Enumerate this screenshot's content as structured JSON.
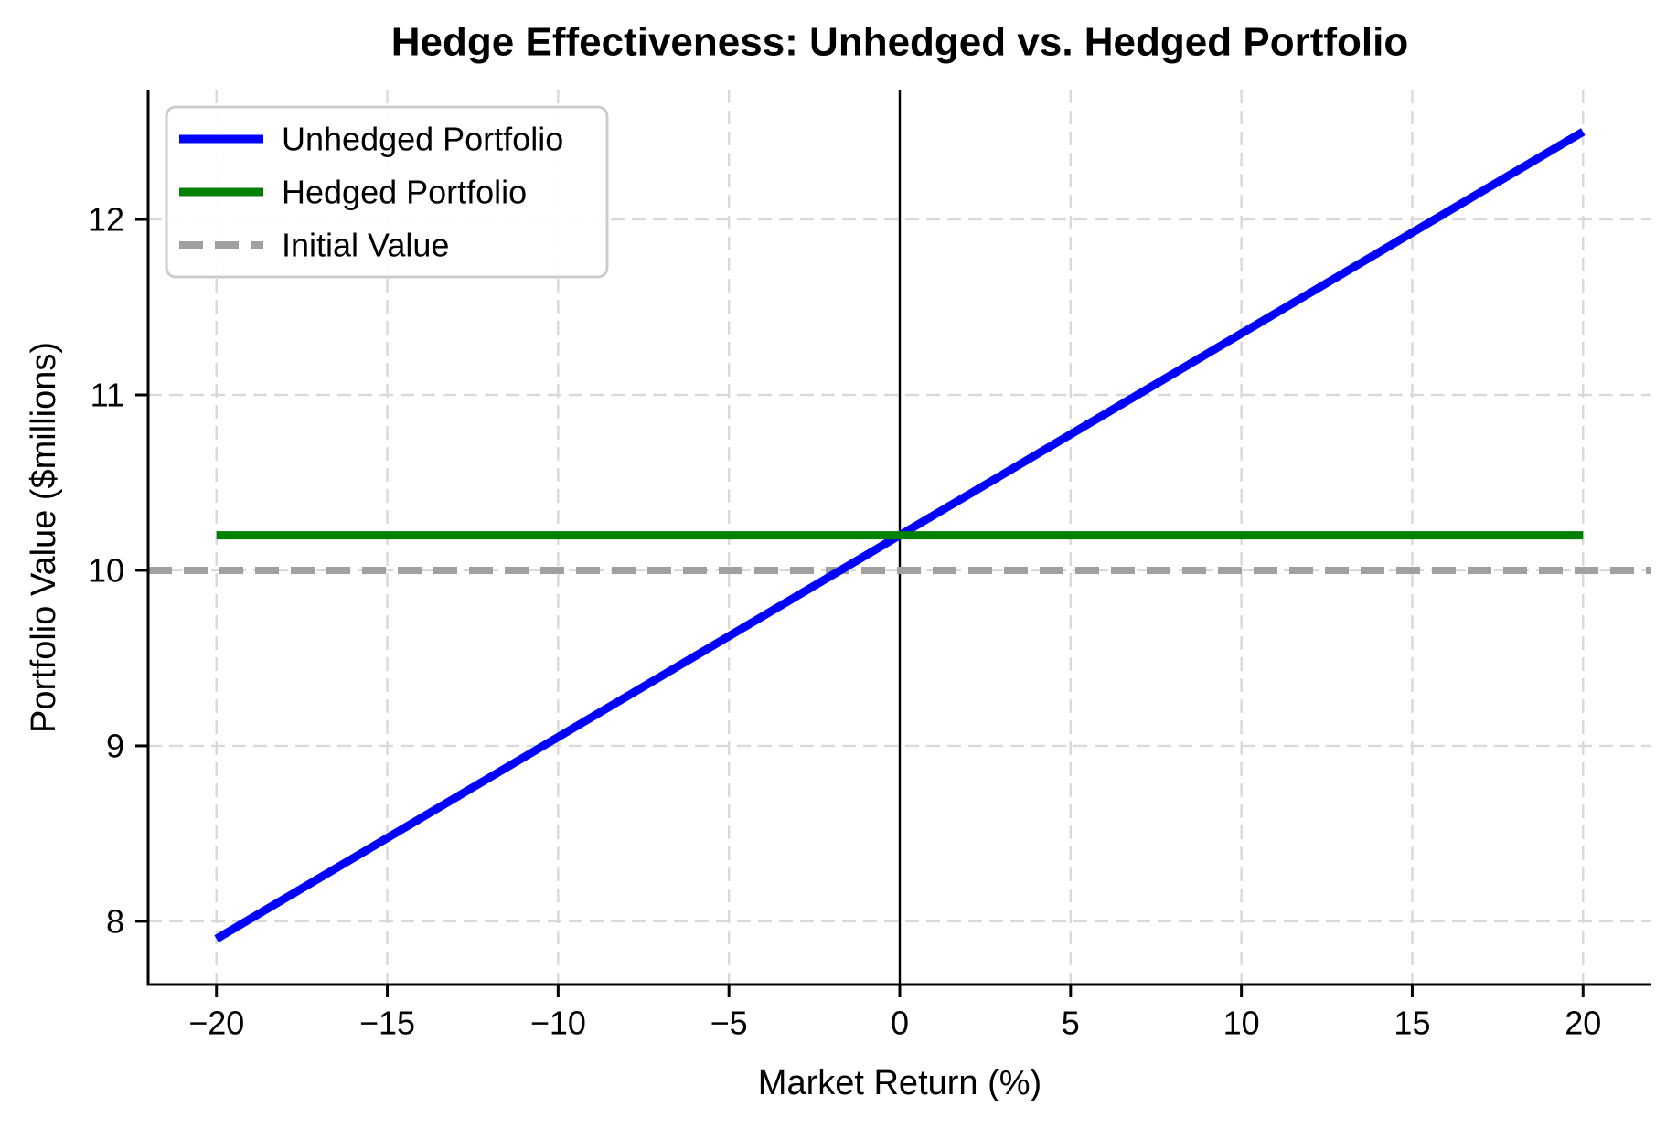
{
  "title": "Hedge Effectiveness: Unhedged vs. Hedged Portfolio",
  "chart_data": {
    "type": "line",
    "title": "Hedge Effectiveness: Unhedged vs. Hedged Portfolio",
    "xlabel": "Market Return (%)",
    "ylabel": "Portfolio Value ($millions)",
    "xlim": [
      -22,
      22
    ],
    "ylim": [
      7.64,
      12.74
    ],
    "x_ticks": [
      -20,
      -15,
      -10,
      -5,
      0,
      5,
      10,
      15,
      20
    ],
    "y_ticks": [
      8,
      9,
      10,
      11,
      12
    ],
    "grid": true,
    "grid_style": "dashed",
    "legend_position": "upper left",
    "series": [
      {
        "name": "Unhedged Portfolio",
        "color": "#0000ff",
        "style": "solid",
        "x": [
          -20,
          20
        ],
        "y": [
          7.9,
          12.5
        ]
      },
      {
        "name": "Hedged Portfolio",
        "color": "#008000",
        "style": "solid",
        "x": [
          -20,
          20
        ],
        "y": [
          10.2,
          10.2
        ]
      },
      {
        "name": "Initial Value",
        "color": "#a0a0a0",
        "style": "dashed",
        "x": [
          -22,
          22
        ],
        "y": [
          10.0,
          10.0
        ]
      }
    ],
    "annotations": [
      {
        "type": "vline",
        "x": 0,
        "color": "#000000"
      }
    ],
    "colors": {
      "spine": "#000000",
      "grid": "#d9d9d9",
      "legend_border": "#cccccc",
      "legend_bg": "#ffffff"
    }
  }
}
